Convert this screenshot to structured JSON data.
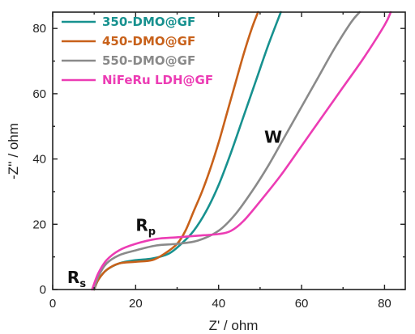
{
  "chart_data": {
    "type": "line",
    "title": "",
    "xlabel": "Z' / ohm",
    "ylabel": "-Z'' / ohm",
    "xlim": [
      0,
      85
    ],
    "ylim": [
      0,
      85
    ],
    "xticks": [
      0,
      20,
      40,
      60,
      80
    ],
    "yticks": [
      0,
      20,
      40,
      60,
      80
    ],
    "xtick_labels": [
      "0",
      "20",
      "40",
      "60",
      "80"
    ],
    "ytick_labels": [
      "0",
      "20",
      "40",
      "60",
      "80"
    ],
    "grid": false,
    "legend_position": "top-left",
    "series": [
      {
        "name": "350-DMO@GF",
        "color": "#17918f",
        "x": [
          10,
          11,
          13,
          16,
          20,
          24,
          28,
          31,
          34,
          37,
          40,
          43,
          46,
          49,
          52,
          55
        ],
        "y": [
          0,
          3,
          6,
          8,
          9,
          9.5,
          11,
          14,
          18,
          24,
          32,
          42,
          53,
          64,
          75,
          85
        ]
      },
      {
        "name": "450-DMO@GF",
        "color": "#c8611a",
        "x": [
          10,
          11,
          13,
          16,
          20,
          24,
          27,
          30,
          32,
          34,
          36,
          38,
          40,
          42,
          44,
          46,
          48,
          49.5
        ],
        "y": [
          0,
          3,
          6,
          8,
          8.5,
          9,
          11,
          14,
          18,
          24,
          30,
          37,
          45,
          54,
          63,
          72,
          80,
          85
        ]
      },
      {
        "name": "550-DMO@GF",
        "color": "#8a8a8a",
        "x": [
          10,
          11,
          13,
          16,
          20,
          25,
          30,
          35,
          40,
          44,
          48,
          52,
          56,
          60,
          64,
          68,
          72,
          74
        ],
        "y": [
          0,
          4,
          8,
          10.5,
          12,
          13.5,
          14,
          15,
          18,
          23,
          30,
          38,
          47,
          56,
          65,
          74,
          82,
          85
        ]
      },
      {
        "name": "NiFeRu LDH@GF",
        "color": "#ec3cb4",
        "x": [
          9.5,
          11,
          13,
          16,
          20,
          25,
          30,
          35,
          40,
          43,
          46,
          50,
          55,
          60,
          65,
          70,
          75,
          80,
          81.5
        ],
        "y": [
          0,
          5,
          9,
          12,
          14,
          15.5,
          16,
          16.5,
          17,
          18,
          21,
          27,
          35,
          44,
          53,
          62,
          71,
          81,
          85
        ]
      }
    ],
    "annotations": [
      {
        "text": "W",
        "x": 51,
        "y": 45
      },
      {
        "text": "R",
        "sub": "p",
        "x": 20,
        "y": 18
      },
      {
        "text": "R",
        "sub": "s",
        "x": 3.5,
        "y": 2
      }
    ]
  }
}
